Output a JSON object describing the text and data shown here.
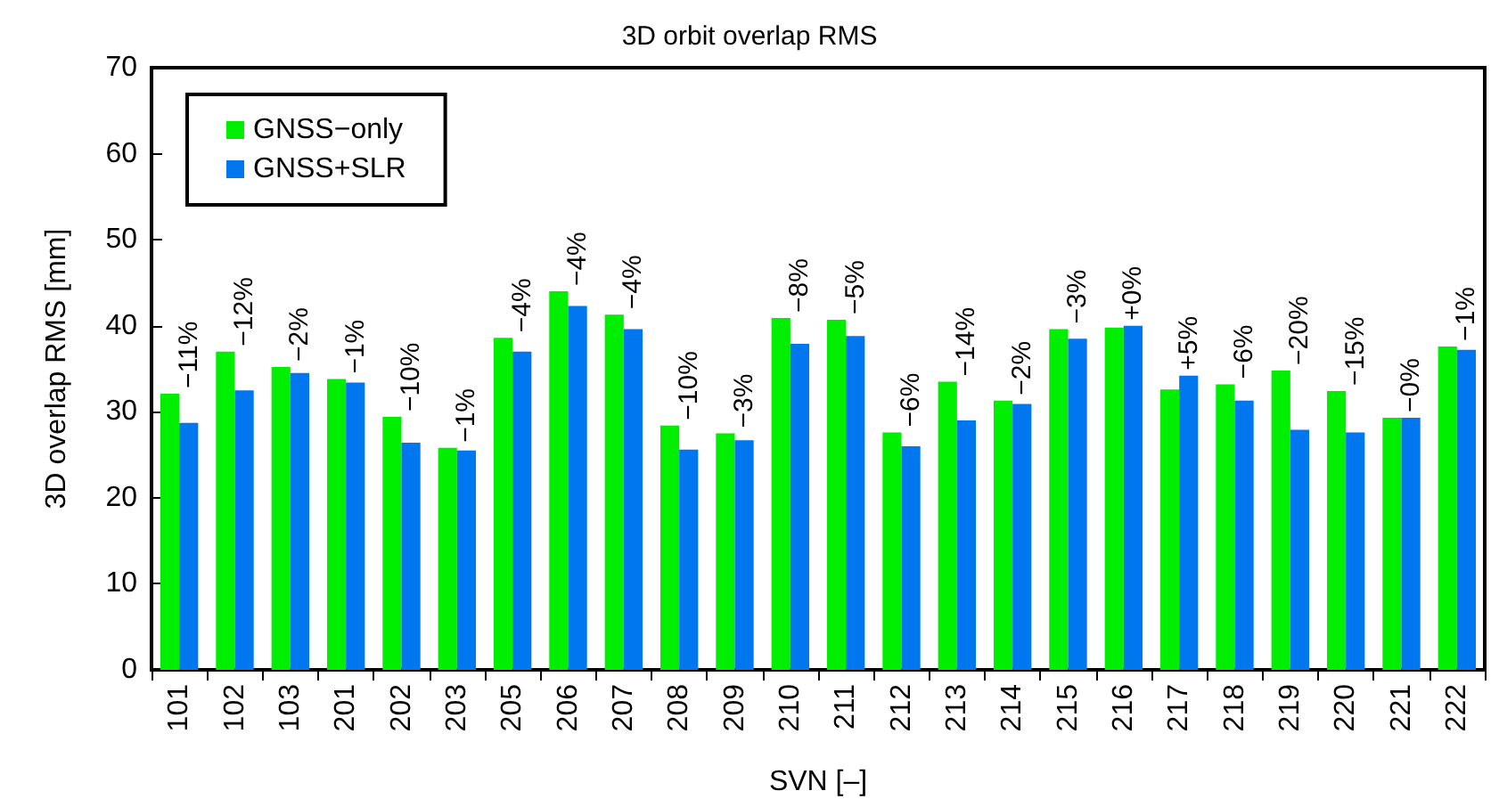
{
  "chart_data": {
    "type": "bar",
    "title": "3D orbit overlap RMS",
    "xlabel": "SVN [–]",
    "ylabel": "3D overlap RMS [mm]",
    "categories": [
      "101",
      "102",
      "103",
      "201",
      "202",
      "203",
      "205",
      "206",
      "207",
      "208",
      "209",
      "210",
      "211",
      "212",
      "213",
      "214",
      "215",
      "216",
      "217",
      "218",
      "219",
      "220",
      "221",
      "222"
    ],
    "series": [
      {
        "name": "GNSS−only",
        "color": "#00ee00",
        "values": [
          32.1,
          37.0,
          35.2,
          33.8,
          29.4,
          25.8,
          38.6,
          44.0,
          41.3,
          28.4,
          27.5,
          40.9,
          40.7,
          27.6,
          33.5,
          31.3,
          39.6,
          39.8,
          32.6,
          33.2,
          34.8,
          32.4,
          29.3,
          37.6
        ]
      },
      {
        "name": "GNSS+SLR",
        "color": "#0077ee",
        "values": [
          28.7,
          32.5,
          34.5,
          33.4,
          26.4,
          25.5,
          37.0,
          42.3,
          39.6,
          25.6,
          26.7,
          37.9,
          38.8,
          26.0,
          29.0,
          30.9,
          38.5,
          40.0,
          34.2,
          31.3,
          27.9,
          27.6,
          29.3,
          37.2
        ]
      }
    ],
    "annotations": [
      {
        "text": "−11%",
        "x": "101",
        "y": 32.1
      },
      {
        "text": "−12%",
        "x": "102",
        "y": 37.0
      },
      {
        "text": "−2%",
        "x": "103",
        "y": 35.2
      },
      {
        "text": "−1%",
        "x": "201",
        "y": 33.8
      },
      {
        "text": "−10%",
        "x": "202",
        "y": 29.4
      },
      {
        "text": "−1%",
        "x": "203",
        "y": 25.8
      },
      {
        "text": "−4%",
        "x": "205",
        "y": 38.6
      },
      {
        "text": "−4%",
        "x": "206",
        "y": 44.0
      },
      {
        "text": "−4%",
        "x": "207",
        "y": 41.3
      },
      {
        "text": "−10%",
        "x": "208",
        "y": 28.4
      },
      {
        "text": "−3%",
        "x": "209",
        "y": 27.5
      },
      {
        "text": "−8%",
        "x": "210",
        "y": 40.9
      },
      {
        "text": "−5%",
        "x": "211",
        "y": 40.7
      },
      {
        "text": "−6%",
        "x": "212",
        "y": 27.6
      },
      {
        "text": "−14%",
        "x": "213",
        "y": 33.5
      },
      {
        "text": "−2%",
        "x": "214",
        "y": 31.3
      },
      {
        "text": "−3%",
        "x": "215",
        "y": 39.6
      },
      {
        "text": "+0%",
        "x": "216",
        "y": 40.0
      },
      {
        "text": "+5%",
        "x": "217",
        "y": 34.2
      },
      {
        "text": "−6%",
        "x": "218",
        "y": 33.2
      },
      {
        "text": "−20%",
        "x": "219",
        "y": 34.8
      },
      {
        "text": "−15%",
        "x": "220",
        "y": 32.4
      },
      {
        "text": "−0%",
        "x": "221",
        "y": 29.3
      },
      {
        "text": "−1%",
        "x": "222",
        "y": 37.6
      }
    ],
    "ylim": [
      0,
      70
    ],
    "yticks": [
      0,
      10,
      20,
      30,
      40,
      50,
      60,
      70
    ],
    "grid": false,
    "legend": "top left"
  }
}
